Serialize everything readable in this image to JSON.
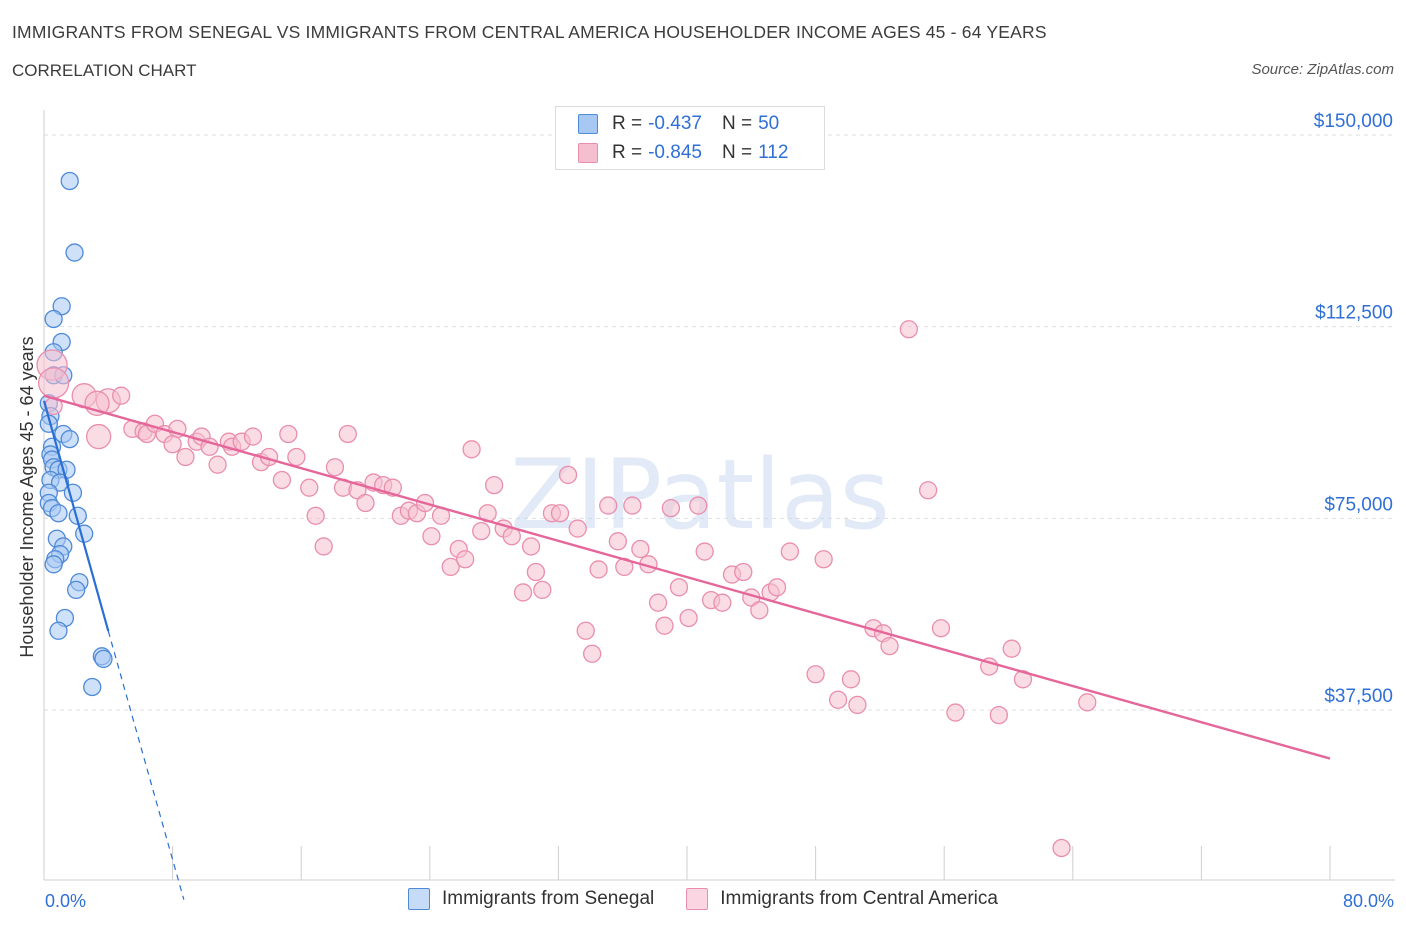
{
  "header": {
    "title": "IMMIGRANTS FROM SENEGAL VS IMMIGRANTS FROM CENTRAL AMERICA HOUSEHOLDER INCOME AGES 45 - 64 YEARS",
    "subtitle": "CORRELATION CHART",
    "source": "Source: ZipAtlas.com"
  },
  "watermark": "ZIPatlas",
  "colors": {
    "senegal_fill": "#a8c8f4",
    "senegal_stroke": "#4f8ad8",
    "senegal_line": "#2a6fd3",
    "central_fill": "#f6bfd0",
    "central_stroke": "#ea8eae",
    "central_line": "#e5679a",
    "axis_label": "#2f6fd6",
    "grid": "#dedede"
  },
  "stats": {
    "senegal": {
      "r_label": "R =",
      "r_value": "-0.437",
      "n_label": "N =",
      "n_value": "50"
    },
    "central": {
      "r_label": "R =",
      "r_value": "-0.845",
      "n_label": "N =",
      "n_value": "112"
    }
  },
  "legend": {
    "senegal": "Immigrants from Senegal",
    "central": "Immigrants from Central America"
  },
  "chart_data": {
    "type": "scatter",
    "title": "IMMIGRANTS FROM SENEGAL VS IMMIGRANTS FROM CENTRAL AMERICA HOUSEHOLDER INCOME AGES 45 - 64 YEARS",
    "xlabel": "",
    "ylabel": "Householder Income Ages 45 - 64 years",
    "xlim": [
      0,
      80
    ],
    "ylim": [
      0,
      155000
    ],
    "x_tick_labels": [
      "0.0%",
      "80.0%"
    ],
    "y_ticks": [
      37500,
      75000,
      112500,
      150000
    ],
    "y_tick_labels": [
      "$37,500",
      "$75,000",
      "$112,500",
      "$150,000"
    ],
    "grid": true,
    "series": [
      {
        "name": "Immigrants from Senegal",
        "trend": {
          "x_start": 0.0,
          "y_start": 98000,
          "x_solid_end": 4.0,
          "x_dash_end": 8.7,
          "y_dash_end": 0
        },
        "points": [
          {
            "x": 1.6,
            "y": 141000
          },
          {
            "x": 1.9,
            "y": 127000
          },
          {
            "x": 1.1,
            "y": 116500
          },
          {
            "x": 0.6,
            "y": 114000
          },
          {
            "x": 1.1,
            "y": 109500
          },
          {
            "x": 0.6,
            "y": 107500
          },
          {
            "x": 0.6,
            "y": 103000
          },
          {
            "x": 1.2,
            "y": 103000
          },
          {
            "x": 0.3,
            "y": 97500
          },
          {
            "x": 0.4,
            "y": 95000
          },
          {
            "x": 0.3,
            "y": 93500
          },
          {
            "x": 1.2,
            "y": 91500
          },
          {
            "x": 1.6,
            "y": 90500
          },
          {
            "x": 0.5,
            "y": 89000
          },
          {
            "x": 0.4,
            "y": 87500
          },
          {
            "x": 0.5,
            "y": 86500
          },
          {
            "x": 0.6,
            "y": 85000
          },
          {
            "x": 0.9,
            "y": 84500
          },
          {
            "x": 1.4,
            "y": 84500
          },
          {
            "x": 0.4,
            "y": 82500
          },
          {
            "x": 1.0,
            "y": 82000
          },
          {
            "x": 0.3,
            "y": 80000
          },
          {
            "x": 1.8,
            "y": 80000
          },
          {
            "x": 0.3,
            "y": 78000
          },
          {
            "x": 0.5,
            "y": 77000
          },
          {
            "x": 0.9,
            "y": 76000
          },
          {
            "x": 2.1,
            "y": 75500
          },
          {
            "x": 2.5,
            "y": 72000
          },
          {
            "x": 0.8,
            "y": 71000
          },
          {
            "x": 1.2,
            "y": 69500
          },
          {
            "x": 1.0,
            "y": 68000
          },
          {
            "x": 0.7,
            "y": 67000
          },
          {
            "x": 0.6,
            "y": 66000
          },
          {
            "x": 2.2,
            "y": 62500
          },
          {
            "x": 2.0,
            "y": 61000
          },
          {
            "x": 1.3,
            "y": 55500
          },
          {
            "x": 0.9,
            "y": 53000
          },
          {
            "x": 3.6,
            "y": 48000
          },
          {
            "x": 3.7,
            "y": 47500
          },
          {
            "x": 3.0,
            "y": 42000
          }
        ]
      },
      {
        "name": "Immigrants from Central America",
        "trend": {
          "x_start": 0.0,
          "y_start": 99000,
          "x_end": 80.0,
          "y_end": 28000
        },
        "points": [
          {
            "x": 0.5,
            "y": 105000,
            "size": "xl"
          },
          {
            "x": 0.6,
            "y": 101500,
            "size": "xl"
          },
          {
            "x": 2.5,
            "y": 99000,
            "size": "l"
          },
          {
            "x": 4.0,
            "y": 98000,
            "size": "l"
          },
          {
            "x": 3.3,
            "y": 97500,
            "size": "l"
          },
          {
            "x": 3.4,
            "y": 91000,
            "size": "l"
          },
          {
            "x": 0.6,
            "y": 97000
          },
          {
            "x": 4.8,
            "y": 99000
          },
          {
            "x": 5.5,
            "y": 92500
          },
          {
            "x": 6.2,
            "y": 92000
          },
          {
            "x": 6.4,
            "y": 91500
          },
          {
            "x": 6.9,
            "y": 93500
          },
          {
            "x": 7.5,
            "y": 91500
          },
          {
            "x": 8.3,
            "y": 92500
          },
          {
            "x": 8.0,
            "y": 89500
          },
          {
            "x": 8.8,
            "y": 87000
          },
          {
            "x": 9.5,
            "y": 90000
          },
          {
            "x": 9.8,
            "y": 91000
          },
          {
            "x": 10.3,
            "y": 89000
          },
          {
            "x": 10.8,
            "y": 85500
          },
          {
            "x": 11.5,
            "y": 90000
          },
          {
            "x": 11.7,
            "y": 89000
          },
          {
            "x": 12.3,
            "y": 90000
          },
          {
            "x": 13.0,
            "y": 91000
          },
          {
            "x": 13.5,
            "y": 86000
          },
          {
            "x": 14.0,
            "y": 87000
          },
          {
            "x": 14.8,
            "y": 82500
          },
          {
            "x": 15.2,
            "y": 91500
          },
          {
            "x": 15.7,
            "y": 87000
          },
          {
            "x": 16.5,
            "y": 81000
          },
          {
            "x": 16.9,
            "y": 75500
          },
          {
            "x": 17.4,
            "y": 69500
          },
          {
            "x": 18.1,
            "y": 85000
          },
          {
            "x": 18.6,
            "y": 81000
          },
          {
            "x": 18.9,
            "y": 91500
          },
          {
            "x": 19.5,
            "y": 80500
          },
          {
            "x": 20.0,
            "y": 78000
          },
          {
            "x": 20.5,
            "y": 82000
          },
          {
            "x": 21.1,
            "y": 81500
          },
          {
            "x": 21.7,
            "y": 81000
          },
          {
            "x": 22.2,
            "y": 75500
          },
          {
            "x": 22.7,
            "y": 76500
          },
          {
            "x": 23.2,
            "y": 76000
          },
          {
            "x": 23.7,
            "y": 78000
          },
          {
            "x": 24.1,
            "y": 71500
          },
          {
            "x": 24.7,
            "y": 75500
          },
          {
            "x": 25.3,
            "y": 65500
          },
          {
            "x": 25.8,
            "y": 69000
          },
          {
            "x": 26.2,
            "y": 67000
          },
          {
            "x": 26.6,
            "y": 88500
          },
          {
            "x": 27.2,
            "y": 72500
          },
          {
            "x": 27.6,
            "y": 76000
          },
          {
            "x": 28.0,
            "y": 81500
          },
          {
            "x": 28.6,
            "y": 73000
          },
          {
            "x": 29.1,
            "y": 71500
          },
          {
            "x": 29.8,
            "y": 60500
          },
          {
            "x": 30.3,
            "y": 69500
          },
          {
            "x": 30.6,
            "y": 64500
          },
          {
            "x": 31.0,
            "y": 61000
          },
          {
            "x": 31.6,
            "y": 76000
          },
          {
            "x": 32.1,
            "y": 76000
          },
          {
            "x": 32.6,
            "y": 83500
          },
          {
            "x": 33.2,
            "y": 73000
          },
          {
            "x": 33.7,
            "y": 53000
          },
          {
            "x": 34.1,
            "y": 48500
          },
          {
            "x": 34.5,
            "y": 65000
          },
          {
            "x": 35.1,
            "y": 77500
          },
          {
            "x": 35.7,
            "y": 70500
          },
          {
            "x": 36.1,
            "y": 65500
          },
          {
            "x": 36.6,
            "y": 77500
          },
          {
            "x": 37.1,
            "y": 69000
          },
          {
            "x": 37.6,
            "y": 66000
          },
          {
            "x": 38.2,
            "y": 58500
          },
          {
            "x": 38.6,
            "y": 54000
          },
          {
            "x": 39.0,
            "y": 77000
          },
          {
            "x": 39.5,
            "y": 61500
          },
          {
            "x": 40.1,
            "y": 55500
          },
          {
            "x": 40.7,
            "y": 77500
          },
          {
            "x": 41.1,
            "y": 68500
          },
          {
            "x": 41.5,
            "y": 59000
          },
          {
            "x": 42.2,
            "y": 58500
          },
          {
            "x": 42.8,
            "y": 64000
          },
          {
            "x": 43.5,
            "y": 64500
          },
          {
            "x": 44.0,
            "y": 59500
          },
          {
            "x": 44.5,
            "y": 57000
          },
          {
            "x": 45.2,
            "y": 60500
          },
          {
            "x": 45.6,
            "y": 61500
          },
          {
            "x": 46.4,
            "y": 68500
          },
          {
            "x": 48.0,
            "y": 44500
          },
          {
            "x": 48.5,
            "y": 67000
          },
          {
            "x": 49.4,
            "y": 39500
          },
          {
            "x": 50.2,
            "y": 43500
          },
          {
            "x": 50.6,
            "y": 38500
          },
          {
            "x": 51.6,
            "y": 53500
          },
          {
            "x": 52.2,
            "y": 52500
          },
          {
            "x": 52.6,
            "y": 50000
          },
          {
            "x": 53.8,
            "y": 112000
          },
          {
            "x": 55.0,
            "y": 80500
          },
          {
            "x": 55.8,
            "y": 53500
          },
          {
            "x": 56.7,
            "y": 37000
          },
          {
            "x": 58.8,
            "y": 46000
          },
          {
            "x": 59.4,
            "y": 36500
          },
          {
            "x": 60.2,
            "y": 49500
          },
          {
            "x": 60.9,
            "y": 43500
          },
          {
            "x": 64.9,
            "y": 39000
          },
          {
            "x": 63.3,
            "y": 10500
          }
        ]
      }
    ]
  }
}
